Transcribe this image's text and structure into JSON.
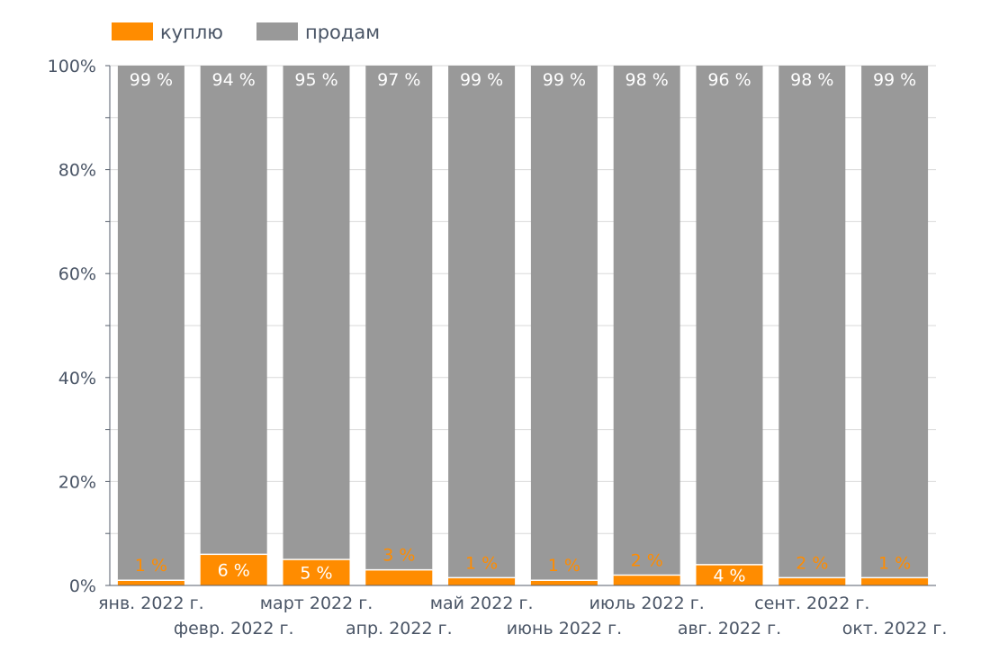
{
  "colors": {
    "buy": "#FF8C00",
    "sell": "#999999",
    "grid": "#d9d9d9",
    "axis": "#555e6b",
    "text": "#4a5566",
    "label_on_sell": "#ffffff"
  },
  "chart_data": {
    "type": "bar",
    "stacked": true,
    "normalized": "percent",
    "categories": [
      "янв. 2022 г.",
      "февр. 2022 г.",
      "март 2022 г.",
      "апр. 2022 г.",
      "май 2022 г.",
      "июнь 2022 г.",
      "июль 2022 г.",
      "авг. 2022 г.",
      "сент. 2022 г.",
      "окт. 2022 г."
    ],
    "series": [
      {
        "name": "куплю",
        "color": "#FF8C00",
        "values": [
          1,
          6,
          5,
          3,
          1.5,
          1,
          2,
          4,
          1.5,
          1.5
        ],
        "labels": [
          "1 %",
          "6 %",
          "5 %",
          "3 %",
          "1 %",
          "1 %",
          "2 %",
          "4 %",
          "2 %",
          "1 %"
        ]
      },
      {
        "name": "продам",
        "color": "#999999",
        "values": [
          99,
          94,
          95,
          97,
          98.5,
          99,
          98,
          96,
          98.5,
          98.5
        ],
        "labels": [
          "99 %",
          "94 %",
          "95 %",
          "97 %",
          "99 %",
          "99 %",
          "98 %",
          "96 %",
          "98 %",
          "99 %"
        ]
      }
    ],
    "yticks": [
      "0%",
      "20%",
      "40%",
      "60%",
      "80%",
      "100%"
    ],
    "ylim": [
      0,
      100
    ],
    "grid": true,
    "legend": "top-left"
  }
}
